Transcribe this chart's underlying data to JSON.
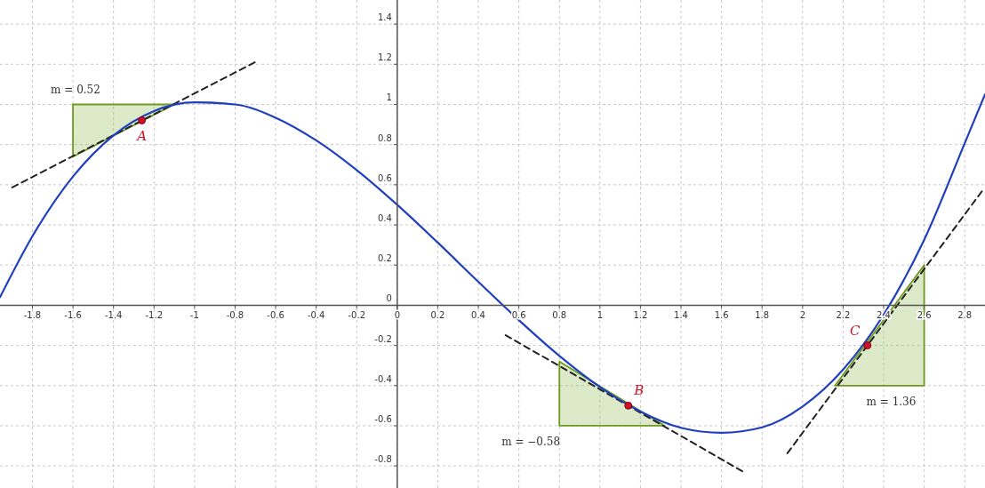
{
  "chart_data": {
    "type": "line",
    "xlim": [
      -1.96,
      2.9
    ],
    "ylim": [
      -0.91,
      1.52
    ],
    "xticks": [
      -1.8,
      -1.6,
      -1.4,
      -1.2,
      -1,
      -0.8,
      -0.6,
      -0.4,
      -0.2,
      0,
      0.2,
      0.4,
      0.6,
      0.8,
      1,
      1.2,
      1.4,
      1.6,
      1.8,
      2,
      2.2,
      2.4,
      2.6,
      2.8
    ],
    "yticks": [
      -0.8,
      -0.6,
      -0.4,
      -0.2,
      0,
      0.2,
      0.4,
      0.6,
      0.8,
      1,
      1.2,
      1.4
    ],
    "grid": true,
    "series": [
      {
        "type": "area",
        "name": "m = 0.52",
        "color": "#9bc464",
        "x": [
          -1.6,
          -1.6,
          -1.1
        ],
        "values": [
          0.74,
          1.0,
          1.0
        ]
      },
      {
        "type": "area",
        "name": "m = −0.58",
        "color": "#9bc464",
        "x": [
          0.8,
          0.8,
          1.32
        ],
        "values": [
          -0.28,
          -0.6,
          -0.6
        ]
      },
      {
        "type": "area",
        "name": "m = 1.36",
        "color": "#9bc464",
        "x": [
          2.16,
          2.6,
          2.6
        ],
        "values": [
          -0.4,
          -0.4,
          0.2
        ]
      },
      {
        "type": "line",
        "color": "#222222",
        "line_style": "dashed",
        "x": [
          -1.9,
          -0.7
        ],
        "values": [
          0.587,
          1.211
        ]
      },
      {
        "type": "line",
        "color": "#222222",
        "line_style": "dashed",
        "x": [
          0.535,
          1.717
        ],
        "values": [
          -0.149,
          -0.835
        ]
      },
      {
        "type": "line",
        "color": "#222222",
        "line_style": "dashed",
        "x": [
          1.925,
          2.894
        ],
        "values": [
          -0.737,
          0.58
        ]
      },
      {
        "color": "#1f3fbf",
        "line_style": "solid",
        "x": [
          -1.96,
          -1.8,
          -1.6,
          -1.4,
          -1.2,
          -1,
          -0.8,
          -0.6,
          -0.4,
          -0.2,
          0,
          0.2,
          0.4,
          0.6,
          0.8,
          1,
          1.2,
          1.4,
          1.6,
          1.8,
          2,
          2.2,
          2.4,
          2.6,
          2.8,
          2.9
        ],
        "values": [
          0.04,
          0.344,
          0.641,
          0.846,
          0.967,
          1.01,
          1.0,
          0.934,
          0.821,
          0.673,
          0.5,
          0.312,
          0.117,
          -0.074,
          -0.252,
          -0.407,
          -0.529,
          -0.61,
          -0.635,
          -0.608,
          -0.504,
          -0.32,
          -0.047,
          0.326,
          0.807,
          1.05
        ]
      },
      {
        "type": "scatter",
        "color": "#d0102a",
        "marker": "circle",
        "x": [
          -1.26,
          1.14,
          2.32
        ],
        "values": [
          0.92,
          -0.5,
          -0.2
        ],
        "value_labels": [
          "A",
          "B",
          "C"
        ]
      }
    ]
  }
}
